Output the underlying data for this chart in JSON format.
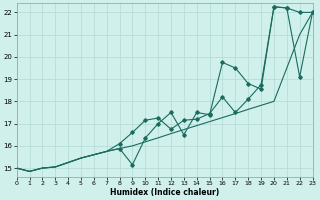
{
  "bg_color": "#cff0eb",
  "grid_color": "#b8ddd8",
  "line_color": "#1a6b60",
  "xlabel": "Humidex (Indice chaleur)",
  "xlim": [
    0,
    23
  ],
  "ylim": [
    14.6,
    22.4
  ],
  "xticks": [
    0,
    1,
    2,
    3,
    4,
    5,
    6,
    7,
    8,
    9,
    10,
    11,
    12,
    13,
    14,
    15,
    16,
    17,
    18,
    19,
    20,
    21,
    22,
    23
  ],
  "yticks": [
    15,
    16,
    17,
    18,
    19,
    20,
    21,
    22
  ],
  "line1_x": [
    0,
    1,
    2,
    3,
    4,
    5,
    6,
    7,
    8,
    9,
    10,
    11,
    12,
    13,
    14,
    15,
    16,
    17,
    18,
    19,
    20,
    21,
    22,
    23
  ],
  "line1_y": [
    15.0,
    14.85,
    15.0,
    15.05,
    15.25,
    15.45,
    15.6,
    15.75,
    15.88,
    16.0,
    16.18,
    16.36,
    16.55,
    16.73,
    16.91,
    17.09,
    17.27,
    17.45,
    17.64,
    17.82,
    18.0,
    19.5,
    21.0,
    22.0
  ],
  "line2_x": [
    0,
    1,
    2,
    3,
    4,
    5,
    6,
    7,
    8,
    9,
    10,
    11,
    12,
    13,
    14,
    15,
    16,
    17,
    18,
    19,
    20,
    21,
    22,
    23
  ],
  "line2_y": [
    15.0,
    14.85,
    15.0,
    15.05,
    15.25,
    15.45,
    15.6,
    15.75,
    16.1,
    16.6,
    17.15,
    17.25,
    16.75,
    17.15,
    17.2,
    17.45,
    18.2,
    17.5,
    18.1,
    18.75,
    22.25,
    22.2,
    19.1,
    22.0
  ],
  "line3_x": [
    0,
    1,
    2,
    3,
    4,
    5,
    6,
    7,
    8,
    9,
    10,
    11,
    12,
    13,
    14,
    15,
    16,
    17,
    18,
    19,
    20,
    21,
    22,
    23
  ],
  "line3_y": [
    15.0,
    14.85,
    15.0,
    15.05,
    15.25,
    15.45,
    15.6,
    15.75,
    15.88,
    15.15,
    16.35,
    17.0,
    17.5,
    16.5,
    17.5,
    17.4,
    19.75,
    19.5,
    18.8,
    18.55,
    22.25,
    22.2,
    22.0,
    22.0
  ],
  "line2_markers": [
    8,
    9,
    10,
    11,
    12,
    13,
    14,
    15,
    16,
    17,
    18,
    19,
    20,
    21,
    22,
    23
  ],
  "line3_markers": [
    8,
    9,
    10,
    11,
    12,
    13,
    14,
    15,
    16,
    17,
    18,
    19,
    20,
    21,
    22,
    23
  ]
}
